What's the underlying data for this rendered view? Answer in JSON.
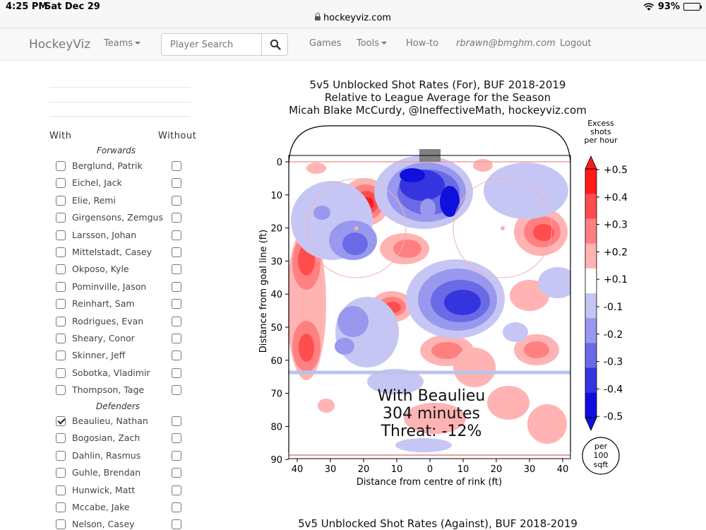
{
  "status_bar": {
    "time": "4:25 PM",
    "date": "Sat Dec 29",
    "battery": "93%",
    "battery_level": 0.93,
    "url": "hockeyviz.com"
  },
  "navbar": {
    "brand": "HockeyViz",
    "teams": "Teams",
    "search_placeholder": "Player Search",
    "games": "Games",
    "tools": "Tools",
    "howto": "How-to",
    "email": "rbrawn@bmghm.com",
    "logout": "Logout"
  },
  "sidebar": {
    "with_label": "With",
    "without_label": "Without",
    "forwards_label": "Forwards",
    "defenders_label": "Defenders",
    "forwards": [
      {
        "name": "Berglund, Patrik",
        "with": false
      },
      {
        "name": "Eichel, Jack",
        "with": false
      },
      {
        "name": "Elie, Remi",
        "with": false
      },
      {
        "name": "Girgensons, Zemgus",
        "with": false
      },
      {
        "name": "Larsson, Johan",
        "with": false
      },
      {
        "name": "Mittelstadt, Casey",
        "with": false
      },
      {
        "name": "Okposo, Kyle",
        "with": false
      },
      {
        "name": "Pominville, Jason",
        "with": false
      },
      {
        "name": "Reinhart, Sam",
        "with": false
      },
      {
        "name": "Rodrigues, Evan",
        "with": false
      },
      {
        "name": "Sheary, Conor",
        "with": false
      },
      {
        "name": "Skinner, Jeff",
        "with": false
      },
      {
        "name": "Sobotka, Vladimir",
        "with": false
      },
      {
        "name": "Thompson, Tage",
        "with": false
      }
    ],
    "defenders": [
      {
        "name": "Beaulieu, Nathan",
        "with": true
      },
      {
        "name": "Bogosian, Zach",
        "with": false
      },
      {
        "name": "Dahlin, Rasmus",
        "with": false
      },
      {
        "name": "Guhle, Brendan",
        "with": false
      },
      {
        "name": "Hunwick, Matt",
        "with": false
      },
      {
        "name": "Mccabe, Jake",
        "with": false
      },
      {
        "name": "Nelson, Casey",
        "with": false
      }
    ]
  },
  "chart": {
    "title_line1": "5v5 Unblocked Shot Rates (For), BUF 2018-2019",
    "title_line2": "Relative to League Average for the Season",
    "title_line3": "Micah Blake McCurdy, @IneffectiveMath, hockeyviz.com",
    "xlabel": "Distance from centre of rink (ft)",
    "ylabel": "Distance from goal line (ft)",
    "x_ticks": [
      "40",
      "30",
      "20",
      "10",
      "0",
      "10",
      "20",
      "30",
      "40"
    ],
    "y_ticks": [
      "0",
      "10",
      "20",
      "30",
      "40",
      "50",
      "60",
      "70",
      "80",
      "90"
    ],
    "overlay_line1": "With Beaulieu",
    "overlay_line2": "304 minutes",
    "overlay_line3": "Threat: -12%",
    "colorbar_title_1": "Excess",
    "colorbar_title_2": "shots",
    "colorbar_title_3": "per hour",
    "colorbar_labels": [
      "+0.5",
      "+0.4",
      "+0.3",
      "+0.2",
      "+0.1",
      "-0.1",
      "-0.2",
      "-0.3",
      "-0.4",
      "-0.5"
    ],
    "colorbar_colors": [
      "#ff1a1a",
      "#ff4d4d",
      "#ff8080",
      "#ffb3b3",
      "#ffffff",
      "#c6c6f5",
      "#9898ee",
      "#6a6ae6",
      "#3535e0",
      "#1010dd"
    ],
    "unit_line1": "per",
    "unit_line2": "100",
    "unit_line3": "sqft",
    "next_title": "5v5 Unblocked Shot Rates (Against), BUF 2018-2019"
  }
}
